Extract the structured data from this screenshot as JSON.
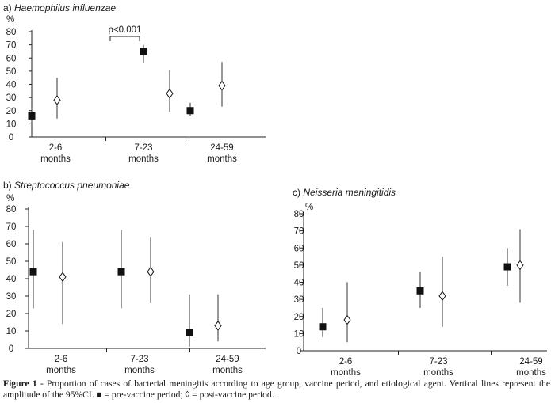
{
  "chart_data": [
    {
      "type": "scatter",
      "title_prefix": "a)",
      "title": "Haemophilus influenzae",
      "ylabel": "%",
      "ylim": [
        0,
        80
      ],
      "yticks": [
        0,
        10,
        20,
        30,
        40,
        50,
        60,
        70,
        80
      ],
      "categories": [
        {
          "line1": "2-6",
          "line2": "months"
        },
        {
          "line1": "7-23",
          "line2": "months"
        },
        {
          "line1": "24-59",
          "line2": "months"
        }
      ],
      "series": [
        {
          "key": "pre",
          "values": [
            16,
            65,
            20
          ],
          "ci_low": [
            11,
            56,
            16
          ],
          "ci_high": [
            22,
            70,
            26
          ]
        },
        {
          "key": "post",
          "values": [
            28,
            33,
            39
          ],
          "ci_low": [
            14,
            19,
            23
          ],
          "ci_high": [
            45,
            51,
            57
          ]
        }
      ],
      "annotation": {
        "text": "p<0.001",
        "category": 1
      }
    },
    {
      "type": "scatter",
      "title_prefix": "b)",
      "title": "Streptococcus pneumoniae",
      "ylabel": "%",
      "ylim": [
        0,
        80
      ],
      "yticks": [
        0,
        10,
        20,
        30,
        40,
        50,
        60,
        70,
        80
      ],
      "categories": [
        {
          "line1": "2-6",
          "line2": "months"
        },
        {
          "line1": "7-23",
          "line2": "months"
        },
        {
          "line1": "24-59",
          "line2": "months"
        }
      ],
      "series": [
        {
          "key": "pre",
          "values": [
            44,
            44,
            9
          ],
          "ci_low": [
            23,
            23,
            1
          ],
          "ci_high": [
            68,
            68,
            31
          ]
        },
        {
          "key": "post",
          "values": [
            41,
            44,
            13
          ],
          "ci_low": [
            14,
            26,
            4
          ],
          "ci_high": [
            61,
            64,
            31
          ]
        }
      ]
    },
    {
      "type": "scatter",
      "title_prefix": "c)",
      "title": "Neisseria meningitidis",
      "ylabel": "%",
      "ylim": [
        0,
        80
      ],
      "yticks": [
        0,
        10,
        20,
        30,
        40,
        50,
        60,
        70,
        80
      ],
      "categories": [
        {
          "line1": "2-6",
          "line2": "months"
        },
        {
          "line1": "7-23",
          "line2": "months"
        },
        {
          "line1": "24-59",
          "line2": "months"
        }
      ],
      "series": [
        {
          "key": "pre",
          "values": [
            14,
            35,
            49
          ],
          "ci_low": [
            8,
            25,
            38
          ],
          "ci_high": [
            25,
            46,
            60
          ]
        },
        {
          "key": "post",
          "values": [
            18,
            32,
            50
          ],
          "ci_low": [
            5,
            14,
            28
          ],
          "ci_high": [
            40,
            55,
            71
          ]
        }
      ]
    }
  ],
  "caption": {
    "label": "Figure 1",
    "text": " - Proportion of cases of bacterial meningitis according to age group, vaccine period, and etiological agent. Vertical lines represent the amplitude of the 95%CI. ■ = pre-vaccine period; ◊ = post-vaccine period."
  },
  "colors": {
    "marker": "#111111",
    "axis": "#222222",
    "ci_line": "#333333"
  }
}
